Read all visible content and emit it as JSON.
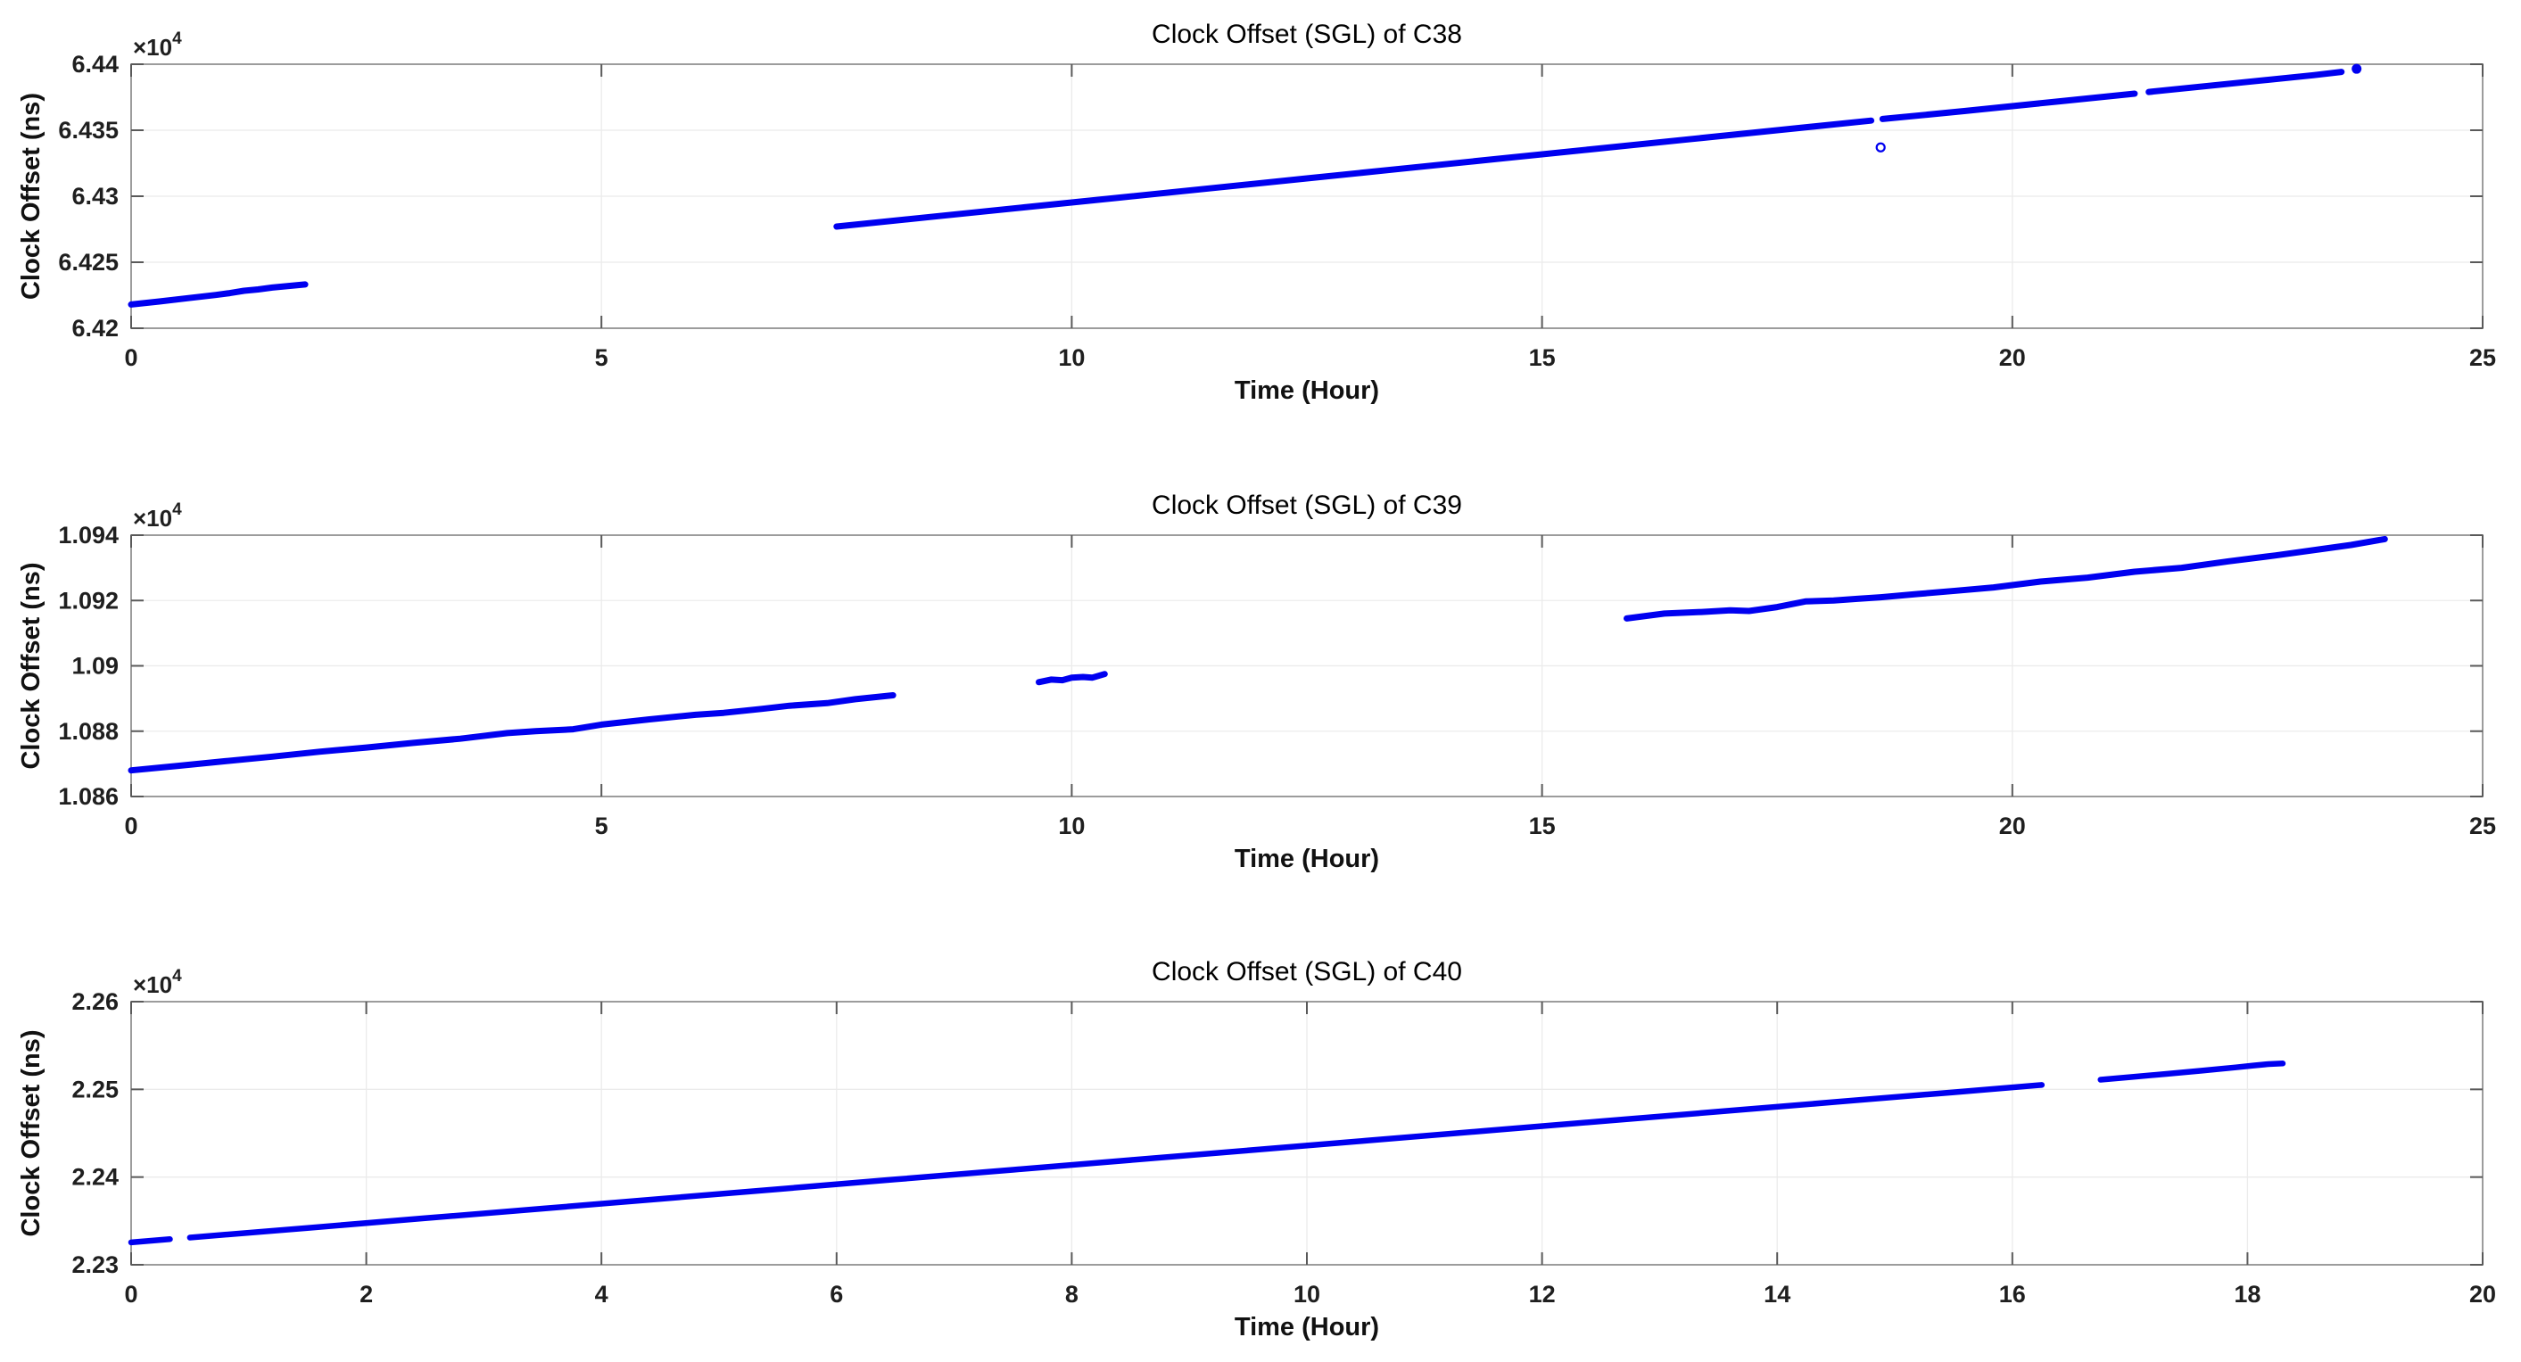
{
  "figure": {
    "background": "#ffffff",
    "styles": {
      "line_color": "#0000f0",
      "grid_color": "#ebebeb",
      "axis_box_color": "#9c9c9c",
      "tick_mark_color": "#595959",
      "tick_label_color": "#1f1f1f",
      "title_color": "#000000"
    }
  },
  "chart_data": [
    {
      "type": "line",
      "id": "c38",
      "title": "Clock Offset (SGL) of C38",
      "xlabel": "Time (Hour)",
      "ylabel": "Clock Offset (ns)",
      "y_exponent": {
        "base": "×10",
        "power": "4"
      },
      "y_units_note": "y values in units of 1e4 ns",
      "xlim": [
        0,
        25
      ],
      "ylim": [
        6.42,
        6.44
      ],
      "x_tick_values": [
        0,
        5,
        10,
        15,
        20,
        25
      ],
      "x_tick_labels": [
        "0",
        "5",
        "10",
        "15",
        "20",
        "25"
      ],
      "y_tick_values": [
        6.42,
        6.425,
        6.43,
        6.435,
        6.44
      ],
      "y_tick_labels": [
        "6.42",
        "6.425",
        "6.43",
        "6.435",
        "6.44"
      ],
      "grid": true,
      "legend": null,
      "series": [
        {
          "name": "clock-offset-c38",
          "color": "#0000f0",
          "width": 7,
          "segments": [
            [
              [
                0,
                6.4218
              ],
              [
                0.3,
                6.42203
              ],
              [
                0.6,
                6.42228
              ],
              [
                0.9,
                6.42252
              ],
              [
                1.05,
                6.42266
              ],
              [
                1.2,
                6.42284
              ],
              [
                1.35,
                6.42294
              ],
              [
                1.5,
                6.42308
              ],
              [
                1.65,
                6.42318
              ],
              [
                1.85,
                6.42332
              ]
            ],
            [
              [
                7.5,
                6.4277
              ],
              [
                8.5,
                6.42843
              ],
              [
                9.5,
                6.42916
              ],
              [
                10.5,
                6.42989
              ],
              [
                11.5,
                6.43062
              ],
              [
                12.5,
                6.43135
              ],
              [
                13.5,
                6.43208
              ],
              [
                14.5,
                6.43281
              ],
              [
                15.5,
                6.43354
              ],
              [
                16.5,
                6.43427
              ],
              [
                17.5,
                6.435
              ],
              [
                18.5,
                6.43573
              ]
            ],
            [
              [
                18.62,
                6.43585
              ],
              [
                19.5,
                6.43646
              ],
              [
                20.5,
                6.43719
              ],
              [
                21.3,
                6.43777
              ]
            ],
            [
              [
                21.45,
                6.4379
              ],
              [
                22.5,
                6.43866
              ],
              [
                23.2,
                6.43917
              ],
              [
                23.5,
                6.43942
              ]
            ]
          ]
        }
      ],
      "dots": [
        {
          "x": 23.66,
          "y": 6.43965
        }
      ],
      "outliers": [
        {
          "x": 18.6,
          "y": 6.4337
        }
      ]
    },
    {
      "type": "line",
      "id": "c39",
      "title": "Clock Offset (SGL) of C39",
      "xlabel": "Time (Hour)",
      "ylabel": "Clock Offset (ns)",
      "y_exponent": {
        "base": "×10",
        "power": "4"
      },
      "y_units_note": "y values in units of 1e4 ns",
      "xlim": [
        0,
        25
      ],
      "ylim": [
        1.086,
        1.094
      ],
      "x_tick_values": [
        0,
        5,
        10,
        15,
        20,
        25
      ],
      "x_tick_labels": [
        "0",
        "5",
        "10",
        "15",
        "20",
        "25"
      ],
      "y_tick_values": [
        1.086,
        1.088,
        1.09,
        1.092,
        1.094
      ],
      "y_tick_labels": [
        "1.086",
        "1.088",
        "1.09",
        "1.092",
        "1.094"
      ],
      "grid": true,
      "legend": null,
      "series": [
        {
          "name": "clock-offset-c39",
          "color": "#0000f0",
          "width": 7,
          "segments": [
            [
              [
                0,
                1.0868
              ],
              [
                0.5,
                1.08694
              ],
              [
                1,
                1.08708
              ],
              [
                1.5,
                1.08722
              ],
              [
                2,
                1.08737
              ],
              [
                2.5,
                1.0875
              ],
              [
                3,
                1.08764
              ],
              [
                3.5,
                1.08777
              ],
              [
                4,
                1.08794
              ],
              [
                4.3,
                1.088
              ],
              [
                4.7,
                1.08806
              ],
              [
                5,
                1.0882
              ],
              [
                5.5,
                1.08836
              ],
              [
                6,
                1.0885
              ],
              [
                6.3,
                1.08856
              ],
              [
                6.7,
                1.08868
              ],
              [
                7,
                1.08878
              ],
              [
                7.4,
                1.08886
              ],
              [
                7.7,
                1.08898
              ],
              [
                8.1,
                1.0891
              ]
            ],
            [
              [
                9.65,
                1.0895
              ],
              [
                9.78,
                1.08958
              ],
              [
                9.9,
                1.08956
              ],
              [
                10.0,
                1.08964
              ],
              [
                10.12,
                1.08966
              ],
              [
                10.22,
                1.08964
              ],
              [
                10.35,
                1.08975
              ]
            ],
            [
              [
                15.9,
                1.09145
              ],
              [
                16.3,
                1.0916
              ],
              [
                16.7,
                1.09165
              ],
              [
                17.0,
                1.0917
              ],
              [
                17.2,
                1.09168
              ],
              [
                17.5,
                1.0918
              ],
              [
                17.8,
                1.09197
              ],
              [
                18.1,
                1.092
              ],
              [
                18.35,
                1.09205
              ],
              [
                18.6,
                1.0921
              ],
              [
                19.0,
                1.0922
              ],
              [
                19.4,
                1.0923
              ],
              [
                19.8,
                1.0924
              ],
              [
                20.3,
                1.09258
              ],
              [
                20.8,
                1.0927
              ],
              [
                21.3,
                1.09288
              ],
              [
                21.8,
                1.093
              ],
              [
                22.3,
                1.0932
              ],
              [
                22.8,
                1.09338
              ],
              [
                23.3,
                1.09358
              ],
              [
                23.6,
                1.0937
              ],
              [
                23.96,
                1.09388
              ]
            ]
          ]
        }
      ],
      "dots": [],
      "outliers": []
    },
    {
      "type": "line",
      "id": "c40",
      "title": "Clock Offset (SGL) of C40",
      "xlabel": "Time (Hour)",
      "ylabel": "Clock Offset (ns)",
      "y_exponent": {
        "base": "×10",
        "power": "4"
      },
      "y_units_note": "y values in units of 1e4 ns",
      "xlim": [
        0,
        20
      ],
      "ylim": [
        2.23,
        2.26
      ],
      "x_tick_values": [
        0,
        2,
        4,
        6,
        8,
        10,
        12,
        14,
        16,
        18,
        20
      ],
      "x_tick_labels": [
        "0",
        "2",
        "4",
        "6",
        "8",
        "10",
        "12",
        "14",
        "16",
        "18",
        "20"
      ],
      "y_tick_values": [
        2.23,
        2.24,
        2.25,
        2.26
      ],
      "y_tick_labels": [
        "2.23",
        "2.24",
        "2.25",
        "2.26"
      ],
      "grid": true,
      "legend": null,
      "series": [
        {
          "name": "clock-offset-c40",
          "color": "#0000f0",
          "width": 6.5,
          "segments": [
            [
              [
                0,
                2.23255
              ],
              [
                0.33,
                2.23292
              ]
            ],
            [
              [
                0.5,
                2.2331
              ],
              [
                1.5,
                2.2342
              ],
              [
                2.5,
                2.23531
              ],
              [
                3.5,
                2.23641
              ],
              [
                4.5,
                2.23752
              ],
              [
                5.5,
                2.23862
              ],
              [
                6.5,
                2.23973
              ],
              [
                7.5,
                2.24083
              ],
              [
                8.5,
                2.24194
              ],
              [
                9.5,
                2.24304
              ],
              [
                10.5,
                2.24415
              ],
              [
                11.5,
                2.24525
              ],
              [
                12.5,
                2.24636
              ],
              [
                13.5,
                2.24746
              ],
              [
                14.5,
                2.24857
              ],
              [
                15.5,
                2.24967
              ],
              [
                16.25,
                2.2505
              ]
            ],
            [
              [
                16.75,
                2.2511
              ],
              [
                17.0,
                2.2514
              ],
              [
                17.3,
                2.25175
              ],
              [
                17.6,
                2.25212
              ],
              [
                17.9,
                2.2525
              ],
              [
                18.05,
                2.25272
              ],
              [
                18.18,
                2.25288
              ],
              [
                18.3,
                2.25295
              ]
            ]
          ]
        }
      ],
      "dots": [],
      "outliers": []
    }
  ]
}
